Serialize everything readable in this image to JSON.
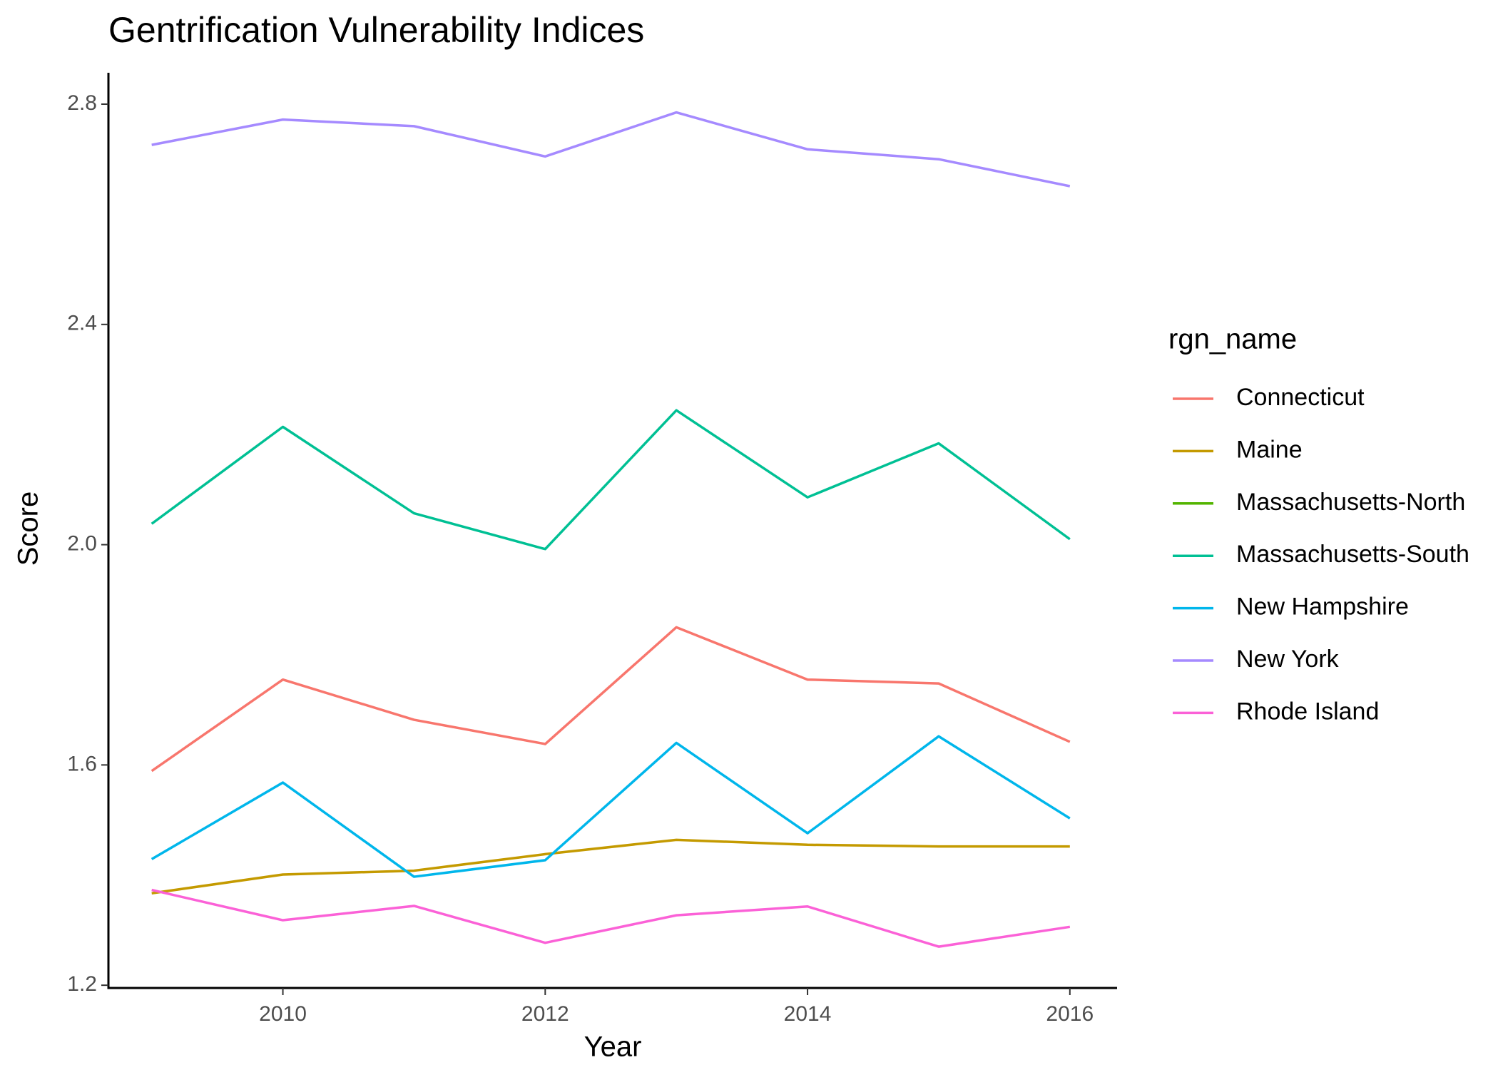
{
  "chart_data": {
    "type": "line",
    "title": "Gentrification Vulnerability Indices",
    "x_label": "Year",
    "y_label": "Score",
    "legend_title": "rgn_name",
    "legend_position": "right",
    "x": [
      2009,
      2010,
      2011,
      2012,
      2013,
      2014,
      2015,
      2016
    ],
    "xlim": [
      2008.67,
      2016.36
    ],
    "xticks": [
      2010,
      2012,
      2014,
      2016
    ],
    "ylim": [
      1.195,
      2.857
    ],
    "yticks": [
      {
        "value": 1.2,
        "label": "1.2"
      },
      {
        "value": 1.6,
        "label": "1.6"
      },
      {
        "value": 2.0,
        "label": "2.0"
      },
      {
        "value": 2.4,
        "label": "2.4"
      },
      {
        "value": 2.8,
        "label": "2.8"
      }
    ],
    "grid": false,
    "series": [
      {
        "name": "Connecticut",
        "color": "#F8766D",
        "values": [
          1.589,
          1.755,
          1.682,
          1.638,
          1.85,
          1.755,
          1.748,
          1.642
        ]
      },
      {
        "name": "Maine",
        "color": "#C49A00",
        "values": [
          1.367,
          1.401,
          1.408,
          1.438,
          1.464,
          1.455,
          1.452,
          1.452
        ]
      },
      {
        "name": "Massachusetts-North",
        "color": "#53B400",
        "values": [
          null,
          null,
          null,
          null,
          null,
          null,
          null,
          null
        ]
      },
      {
        "name": "Massachusetts-South",
        "color": "#00C094",
        "values": [
          2.038,
          2.214,
          2.057,
          1.992,
          2.244,
          2.086,
          2.184,
          2.01
        ]
      },
      {
        "name": "New Hampshire",
        "color": "#00B6EB",
        "values": [
          1.429,
          1.568,
          1.397,
          1.427,
          1.64,
          1.476,
          1.652,
          1.503
        ]
      },
      {
        "name": "New York",
        "color": "#A58AFF",
        "values": [
          2.726,
          2.772,
          2.76,
          2.705,
          2.785,
          2.718,
          2.7,
          2.651
        ]
      },
      {
        "name": "Rhode Island",
        "color": "#FB61D7",
        "values": [
          1.373,
          1.318,
          1.344,
          1.277,
          1.327,
          1.343,
          1.27,
          1.306
        ]
      }
    ]
  }
}
